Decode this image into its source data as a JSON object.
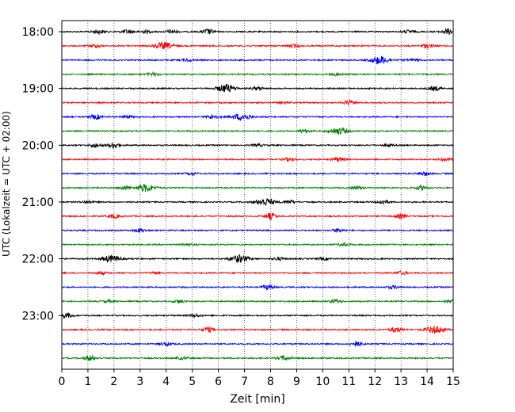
{
  "chart_data": {
    "type": "line",
    "xlabel": "Zeit  [min]",
    "ylabel": "UTC (Lokalzeit = UTC + 02:00)",
    "xlim": [
      0,
      15
    ],
    "x_ticks": [
      "0",
      "1",
      "2",
      "3",
      "4",
      "5",
      "6",
      "7",
      "8",
      "9",
      "10",
      "11",
      "12",
      "13",
      "14",
      "15"
    ],
    "y_ticks": [
      "18:00",
      "19:00",
      "20:00",
      "21:00",
      "22:00",
      "23:00"
    ],
    "grid": "vertical-dotted",
    "series_colors": [
      "#000000",
      "#ff0000",
      "#0000ff",
      "#008000"
    ],
    "traces": [
      {
        "start": "18:00",
        "events": [
          [
            1.4,
            0.25
          ],
          [
            2.5,
            0.25
          ],
          [
            3.2,
            0.2
          ],
          [
            4.2,
            0.25
          ],
          [
            5.6,
            0.35
          ],
          [
            13.3,
            0.2
          ],
          [
            14.8,
            0.4
          ]
        ]
      },
      {
        "start": "18:15",
        "events": [
          [
            1.3,
            0.2
          ],
          [
            3.9,
            0.45
          ],
          [
            8.9,
            0.2
          ],
          [
            14.0,
            0.25
          ]
        ]
      },
      {
        "start": "18:30",
        "events": [
          [
            4.8,
            0.15
          ],
          [
            12.2,
            0.55
          ],
          [
            13.5,
            0.15
          ]
        ]
      },
      {
        "start": "18:45",
        "events": [
          [
            3.5,
            0.2
          ],
          [
            10.5,
            0.15
          ]
        ]
      },
      {
        "start": "19:00",
        "events": [
          [
            6.3,
            0.55
          ],
          [
            7.5,
            0.2
          ],
          [
            14.3,
            0.3
          ]
        ]
      },
      {
        "start": "19:15",
        "events": [
          [
            11.0,
            0.25
          ],
          [
            8.5,
            0.1
          ]
        ]
      },
      {
        "start": "19:30",
        "events": [
          [
            1.3,
            0.3
          ],
          [
            5.8,
            0.3
          ],
          [
            6.9,
            0.45
          ],
          [
            2.5,
            0.15
          ]
        ]
      },
      {
        "start": "19:45",
        "events": [
          [
            10.6,
            0.45
          ],
          [
            9.3,
            0.2
          ]
        ]
      },
      {
        "start": "20:00",
        "events": [
          [
            2.0,
            0.4
          ],
          [
            1.3,
            0.25
          ],
          [
            7.5,
            0.15
          ],
          [
            12.5,
            0.15
          ]
        ]
      },
      {
        "start": "20:15",
        "events": [
          [
            8.7,
            0.2
          ],
          [
            10.6,
            0.3
          ],
          [
            14.7,
            0.2
          ]
        ]
      },
      {
        "start": "20:30",
        "events": [
          [
            5.0,
            0.15
          ],
          [
            13.9,
            0.25
          ]
        ]
      },
      {
        "start": "20:45",
        "events": [
          [
            3.2,
            0.5
          ],
          [
            2.4,
            0.25
          ],
          [
            11.3,
            0.2
          ],
          [
            13.8,
            0.3
          ]
        ]
      },
      {
        "start": "21:00",
        "events": [
          [
            7.8,
            0.5
          ],
          [
            8.7,
            0.25
          ],
          [
            12.3,
            0.3
          ],
          [
            1.0,
            0.15
          ]
        ]
      },
      {
        "start": "21:15",
        "events": [
          [
            2.0,
            0.25
          ],
          [
            8.0,
            0.4
          ],
          [
            13.0,
            0.3
          ]
        ]
      },
      {
        "start": "21:30",
        "events": [
          [
            3.0,
            0.25
          ],
          [
            10.6,
            0.25
          ]
        ]
      },
      {
        "start": "21:45",
        "events": [
          [
            4.8,
            0.15
          ],
          [
            10.8,
            0.2
          ]
        ]
      },
      {
        "start": "22:00",
        "events": [
          [
            1.9,
            0.45
          ],
          [
            6.8,
            0.5
          ],
          [
            8.3,
            0.2
          ],
          [
            10.0,
            0.15
          ]
        ]
      },
      {
        "start": "22:15",
        "events": [
          [
            1.5,
            0.2
          ],
          [
            3.6,
            0.15
          ],
          [
            13.0,
            0.2
          ]
        ]
      },
      {
        "start": "22:30",
        "events": [
          [
            7.9,
            0.3
          ],
          [
            12.7,
            0.2
          ]
        ]
      },
      {
        "start": "22:45",
        "events": [
          [
            1.8,
            0.15
          ],
          [
            4.5,
            0.2
          ],
          [
            10.5,
            0.25
          ],
          [
            15.0,
            0.35
          ]
        ]
      },
      {
        "start": "23:00",
        "events": [
          [
            0.2,
            0.3
          ],
          [
            5.1,
            0.2
          ]
        ]
      },
      {
        "start": "23:15",
        "events": [
          [
            5.6,
            0.35
          ],
          [
            12.8,
            0.35
          ],
          [
            14.3,
            0.5
          ]
        ]
      },
      {
        "start": "23:30",
        "events": [
          [
            11.3,
            0.35
          ],
          [
            4.0,
            0.2
          ]
        ]
      },
      {
        "start": "23:45",
        "events": [
          [
            1.1,
            0.35
          ],
          [
            8.5,
            0.3
          ],
          [
            4.6,
            0.15
          ]
        ]
      }
    ]
  }
}
